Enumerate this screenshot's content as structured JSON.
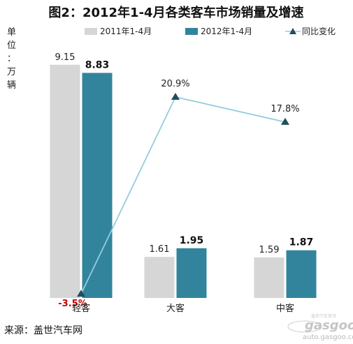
{
  "chart_data": {
    "type": "bar",
    "title": "图2：2012年1-4月各类客车市场销量及增速",
    "ylabel": "单位：万辆",
    "categories": [
      "轻客",
      "大客",
      "中客"
    ],
    "series": [
      {
        "name": "2011年1-4月",
        "kind": "bar",
        "color": "#d6d6d6",
        "values": [
          9.15,
          1.61,
          1.59
        ],
        "labels": [
          "9.15",
          "1.61",
          "1.59"
        ]
      },
      {
        "name": "2012年1-4月",
        "kind": "bar",
        "color": "#31849b",
        "values": [
          8.83,
          1.95,
          1.87
        ],
        "labels": [
          "8.83",
          "1.95",
          "1.87"
        ]
      },
      {
        "name": "同比变化",
        "kind": "line",
        "color": "#93cddd",
        "marker_color": "#1f4e5f",
        "values": [
          -3.5,
          20.9,
          17.8
        ],
        "labels": [
          "-3.5%",
          "20.9%",
          "17.8%"
        ],
        "negative_label_color": "#c00000"
      }
    ],
    "ylim": [
      0,
      9.5
    ],
    "y2lim": [
      -4,
      26
    ],
    "grid": false,
    "legend": "top"
  },
  "source": "来源：盖世汽车网",
  "watermark": {
    "logo": "gasgoo",
    "site": "auto.gasgoo.com",
    "tagline": "盖世汽车资讯"
  }
}
